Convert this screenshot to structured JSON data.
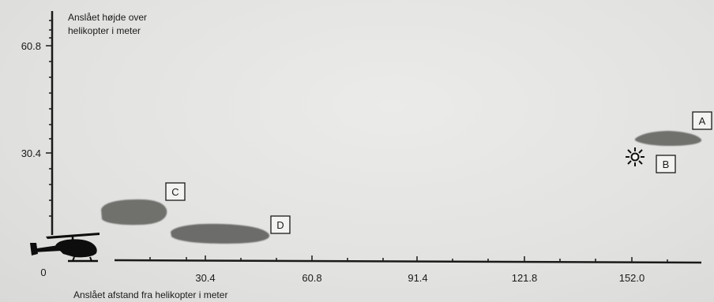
{
  "y_axis": {
    "title_line1": "Anslået højde over",
    "title_line2": "helikopter i meter",
    "tick_labels": [
      "60.8",
      "30.4"
    ]
  },
  "x_axis": {
    "title": "Anslået afstand fra helikopter i meter",
    "origin_label": "0",
    "tick_labels": [
      "30.4",
      "60.8",
      "91.4",
      "121.8",
      "152.0"
    ]
  },
  "objects": [
    {
      "label": "A",
      "shape": "cloud"
    },
    {
      "label": "B",
      "shape": "light-burst-icon"
    },
    {
      "label": "C",
      "shape": "cloud"
    },
    {
      "label": "D",
      "shape": "cloud"
    }
  ],
  "icons": [
    "helicopter-icon",
    "light-burst-icon"
  ],
  "colors": {
    "cloud": "#6e6e6c",
    "axis": "#1a1a1a",
    "background": "#e4e4e2"
  }
}
